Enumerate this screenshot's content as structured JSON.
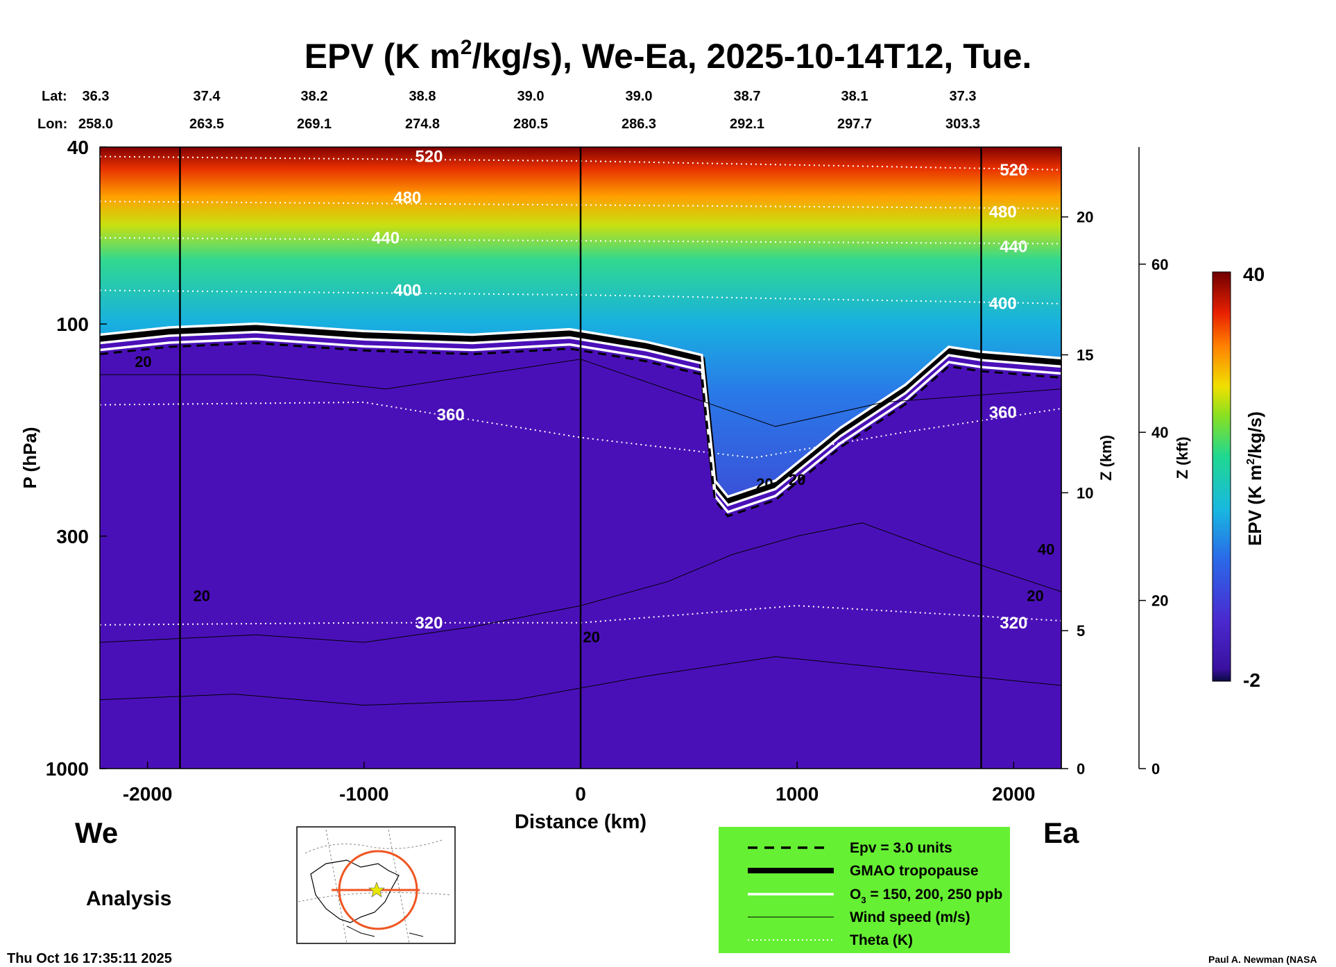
{
  "chart_data": {
    "type": "heatmap",
    "title_prefix": "EPV (K m",
    "title_sup": "2",
    "title_suffix": "/kg/s), We-Ea, 2025-10-14T12, Tue.",
    "lat_label": "Lat:",
    "lon_label": "Lon:",
    "lat_ticks": [
      "36.3",
      "37.4",
      "38.2",
      "38.8",
      "39.0",
      "39.0",
      "38.7",
      "38.1",
      "37.3"
    ],
    "lon_ticks": [
      "258.0",
      "263.5",
      "269.1",
      "274.8",
      "280.5",
      "286.3",
      "292.1",
      "297.7",
      "303.3"
    ],
    "xlabel": "Distance (km)",
    "ylabel": "P (hPa)",
    "xlim": [
      -2220,
      2220
    ],
    "x_ticks": [
      -2000,
      -1000,
      0,
      1000,
      2000
    ],
    "x_tick_labels": [
      "-2000",
      "-1000",
      "0",
      "1000",
      "2000"
    ],
    "y_ticks": [
      40,
      100,
      300,
      1000
    ],
    "y_tick_labels": [
      "40",
      "100",
      "300",
      "1000"
    ],
    "ylim_hpa": [
      1000,
      40
    ],
    "z_km_label": "Z (km)",
    "z_km_ticks": [
      0,
      5,
      10,
      15,
      20
    ],
    "z_km_tick_labels": [
      "0",
      "5",
      "10",
      "15",
      "20"
    ],
    "z_kft_label": "Z (kft)",
    "z_kft_ticks": [
      0,
      20,
      40,
      60
    ],
    "z_kft_tick_labels": [
      "0",
      "20",
      "40",
      "60"
    ],
    "colorbar_label_prefix": "EPV (K m",
    "colorbar_label_sup": "2",
    "colorbar_label_suffix": "/kg/s)",
    "colorbar_range": [
      -2,
      40
    ],
    "colorbar_max_label": "40",
    "colorbar_min_label": "-2",
    "left_end_label": "We",
    "right_end_label": "Ea",
    "analysis_label": "Analysis",
    "timestamp": "Thu Oct 16 17:35:11 2025",
    "credit": "Paul A. Newman (NASA",
    "theta_labels": [
      "520",
      "480",
      "440",
      "400",
      "360",
      "320",
      "520",
      "480",
      "440",
      "400",
      "360",
      "320"
    ],
    "wind_labels": [
      "20",
      "20",
      "20",
      "20",
      "20",
      "40",
      "20"
    ],
    "tropopause_hpa": [
      [
        -2220,
        108
      ],
      [
        -1900,
        104
      ],
      [
        -1500,
        102
      ],
      [
        -1000,
        106
      ],
      [
        -500,
        108
      ],
      [
        -50,
        105
      ],
      [
        300,
        112
      ],
      [
        560,
        120
      ],
      [
        620,
        230
      ],
      [
        680,
        250
      ],
      [
        900,
        230
      ],
      [
        1200,
        175
      ],
      [
        1500,
        140
      ],
      [
        1700,
        115
      ],
      [
        1850,
        118
      ],
      [
        2220,
        122
      ]
    ],
    "theta_lines": [
      {
        "label": "520",
        "hpa": [
          [
            -2220,
            42
          ],
          [
            0,
            43
          ],
          [
            2220,
            45
          ]
        ]
      },
      {
        "label": "480",
        "hpa": [
          [
            -2220,
            53
          ],
          [
            0,
            54
          ],
          [
            2220,
            55
          ]
        ]
      },
      {
        "label": "440",
        "hpa": [
          [
            -2220,
            64
          ],
          [
            0,
            65
          ],
          [
            2220,
            66
          ]
        ]
      },
      {
        "label": "400",
        "hpa": [
          [
            -2220,
            84
          ],
          [
            0,
            86
          ],
          [
            2220,
            90
          ]
        ]
      },
      {
        "label": "360",
        "hpa": [
          [
            -2220,
            152
          ],
          [
            -1000,
            150
          ],
          [
            0,
            180
          ],
          [
            800,
            200
          ],
          [
            1500,
            175
          ],
          [
            2220,
            155
          ]
        ]
      },
      {
        "label": "320",
        "hpa": [
          [
            -2220,
            475
          ],
          [
            -1000,
            470
          ],
          [
            0,
            470
          ],
          [
            1000,
            430
          ],
          [
            2220,
            465
          ]
        ]
      }
    ],
    "legend": [
      {
        "label": "Epv = 3.0 units",
        "style": "dashed"
      },
      {
        "label": "GMAO tropopause",
        "style": "thick"
      },
      {
        "label_prefix": "O",
        "label_sub": "3",
        "label_suffix": " = 150, 200, 250 ppb",
        "style": "white"
      },
      {
        "label": "Wind speed (m/s)",
        "style": "thin"
      },
      {
        "label": "Theta (K)",
        "style": "dotted"
      }
    ]
  },
  "colors": {
    "legend_bg": "#66f033",
    "troposphere": "#4a10b8",
    "stratosphere_low": "#2a7be8",
    "stratosphere_high": "#7a0000",
    "map_circle": "#ee5522",
    "map_star": "#e8e800"
  },
  "inset_map": {
    "name": "location-map"
  }
}
